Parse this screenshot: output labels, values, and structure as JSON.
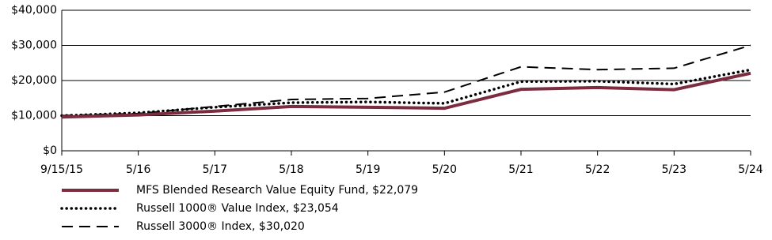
{
  "chart_data": {
    "type": "line",
    "categories": [
      "9/15/15",
      "5/16",
      "5/17",
      "5/18",
      "5/19",
      "5/20",
      "5/21",
      "5/22",
      "5/23",
      "5/24"
    ],
    "series": [
      {
        "name": "MFS Blended Research Value Equity Fund, $22,079",
        "color": "#7b2c3f",
        "style": "solid",
        "values": [
          9600,
          10200,
          11300,
          12600,
          12400,
          12100,
          17500,
          18000,
          17400,
          22079
        ]
      },
      {
        "name": "Russell 1000® Value Index, $23,054",
        "color": "#000000",
        "style": "dotted",
        "values": [
          10000,
          10800,
          12400,
          13700,
          13900,
          13500,
          19700,
          19800,
          19000,
          23054
        ]
      },
      {
        "name": "Russell 3000® Index, $30,020",
        "color": "#000000",
        "style": "dashed",
        "values": [
          10000,
          10600,
          12600,
          14600,
          14900,
          16700,
          23900,
          23100,
          23500,
          30020
        ]
      }
    ],
    "ylim": [
      0,
      40000
    ],
    "yticks": [
      {
        "value": 0,
        "label": "$0"
      },
      {
        "value": 10000,
        "label": "$10,000"
      },
      {
        "value": 20000,
        "label": "$20,000"
      },
      {
        "value": 30000,
        "label": "$30,000"
      },
      {
        "value": 40000,
        "label": "$40,000"
      }
    ],
    "grid": true,
    "legend": "bottom"
  }
}
